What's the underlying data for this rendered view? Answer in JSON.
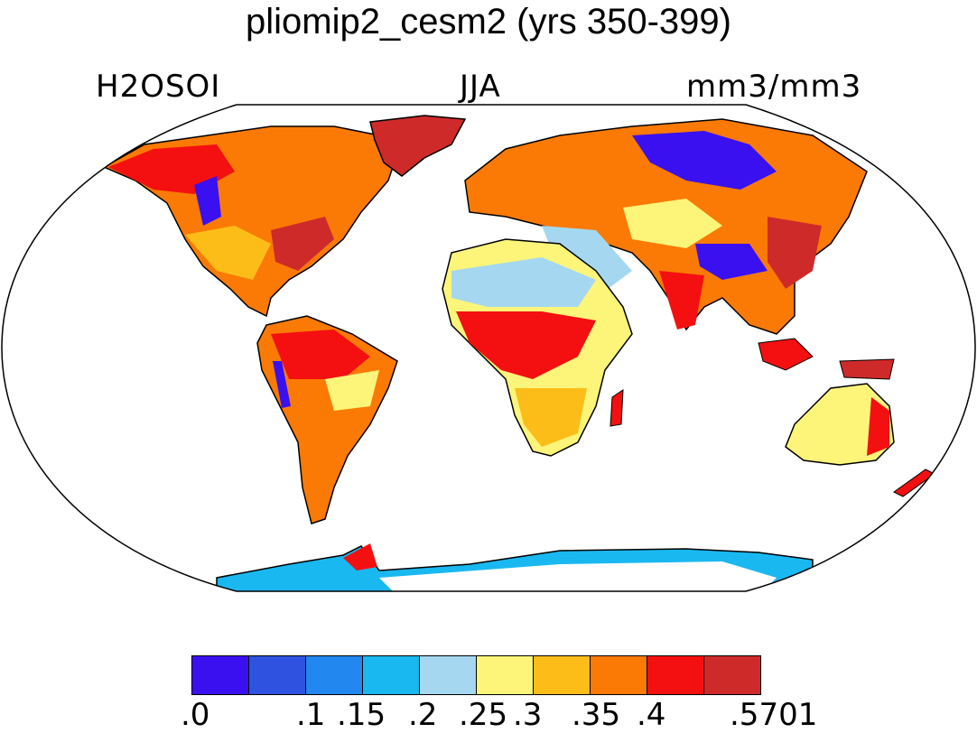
{
  "title": "pliomip2_cesm2 (yrs 350-399)",
  "labels": {
    "left": "H2OSOI",
    "center": "JJA",
    "right": "mm3/mm3"
  },
  "colorbar": {
    "colors": [
      "#3a10f0",
      "#2f52e0",
      "#2387f0",
      "#1ab8f0",
      "#a5d8f0",
      "#fcf57a",
      "#fdbd18",
      "#fb7a05",
      "#f41010",
      "#cf2a2a"
    ],
    "tick_labels": [
      ".0",
      ".1",
      ".15",
      ".2",
      ".25",
      ".3",
      ".35",
      ".4",
      ".5701"
    ]
  }
}
